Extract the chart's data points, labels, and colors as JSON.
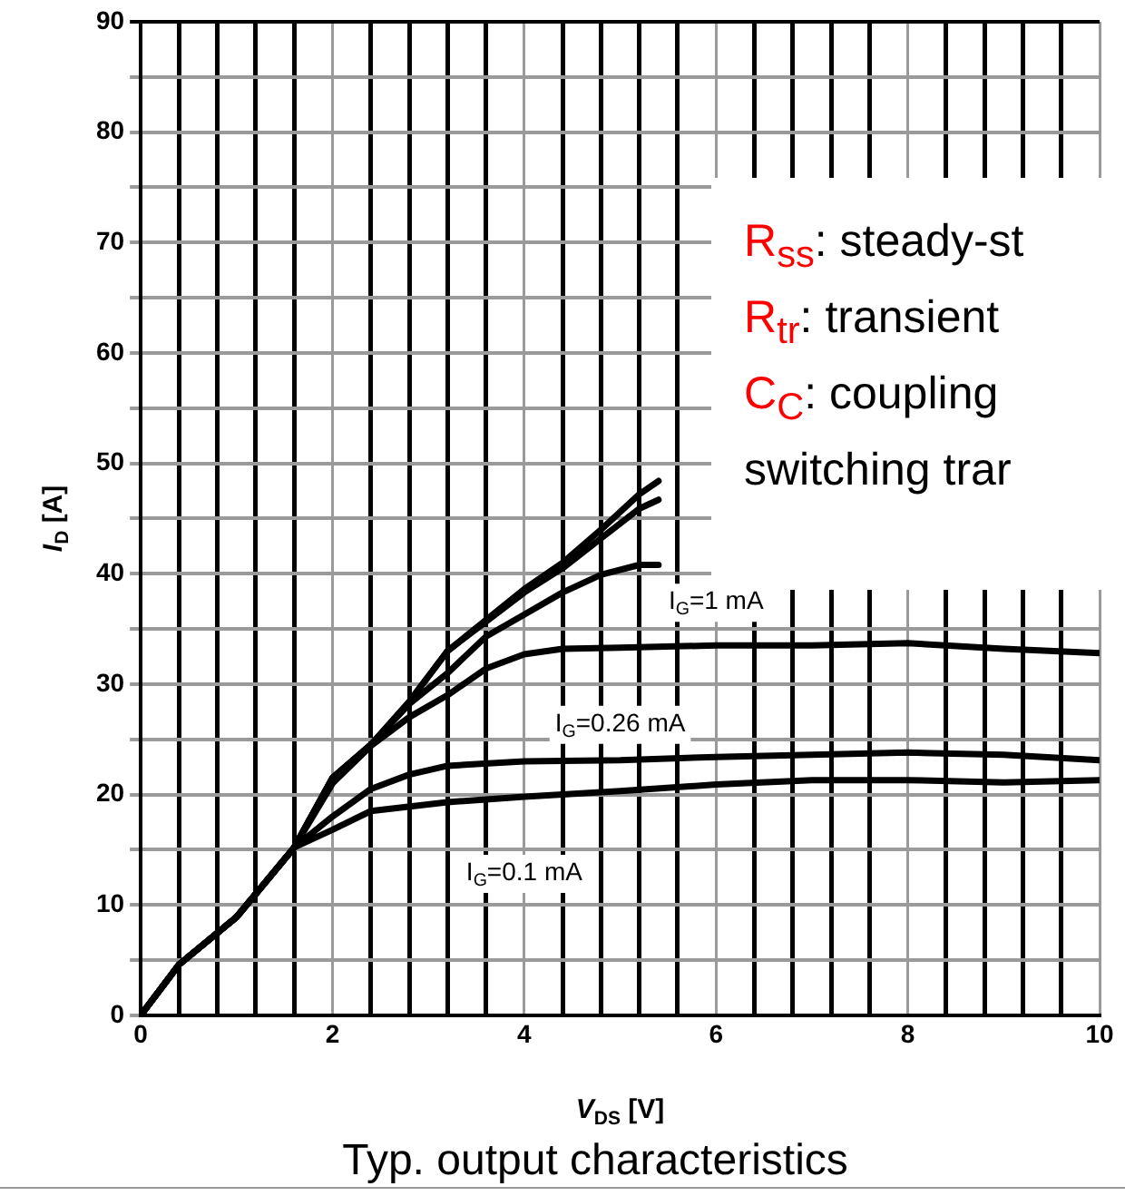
{
  "chart_data": {
    "type": "line",
    "title": "Typ. output characteristics",
    "xlabel": "V$_{DS}$ [V]",
    "ylabel": "I$_{D}$ [A]",
    "xlim": [
      0,
      10
    ],
    "ylim": [
      0,
      90
    ],
    "xticks": [
      0,
      {
        "value": 0.4,
        "label": null
      },
      {
        "value": 0.8,
        "label": null
      },
      {
        "value": 1.2,
        "label": null
      },
      {
        "value": 1.6,
        "label": null
      },
      2,
      {
        "value": 2.4,
        "label": null
      },
      {
        "value": 2.8,
        "label": null
      },
      {
        "value": 3.2,
        "label": null
      },
      {
        "value": 3.6,
        "label": null
      },
      4,
      {
        "value": 4.4,
        "label": null
      },
      {
        "value": 4.8,
        "label": null
      },
      {
        "value": 5.2,
        "label": null
      },
      {
        "value": 5.6,
        "label": null
      },
      6,
      {
        "value": 6.4,
        "label": null
      },
      {
        "value": 6.8,
        "label": null
      },
      {
        "value": 7.2,
        "label": null
      },
      {
        "value": 7.6,
        "label": null
      },
      8,
      {
        "value": 8.4,
        "label": null
      },
      {
        "value": 8.8,
        "label": null
      },
      {
        "value": 9.2,
        "label": null
      },
      {
        "value": 9.6,
        "label": null
      },
      10
    ],
    "yticks": [
      0,
      {
        "value": 5,
        "label": null
      },
      10,
      {
        "value": 15,
        "label": null
      },
      20,
      {
        "value": 25,
        "label": null
      },
      30,
      {
        "value": 35,
        "label": null
      },
      40,
      {
        "value": 45,
        "label": null
      },
      50,
      {
        "value": 55,
        "label": null
      },
      60,
      {
        "value": 65,
        "label": null
      },
      70,
      {
        "value": 75,
        "label": null
      },
      80,
      {
        "value": 85,
        "label": null
      },
      90
    ],
    "grid": true,
    "legend": false,
    "marker": "none",
    "line_style": "solid",
    "series": [
      {
        "name": "I$_{G}$=0.1 mA",
        "color": "#000000",
        "x": [
          0,
          0.4,
          1,
          1.6,
          2,
          2.4,
          3.2,
          4,
          5,
          6,
          7,
          8,
          9,
          10
        ],
        "values": [
          0,
          4.6,
          8.9,
          15.2,
          16.8,
          18.5,
          19.3,
          19.8,
          20.3,
          20.9,
          21.3,
          21.3,
          21.1,
          21.3
        ]
      },
      {
        "name": "I$_{G}$=0.26 mA",
        "color": "#000000",
        "x": [
          0,
          0.4,
          1,
          1.6,
          2,
          2.4,
          2.8,
          3.2,
          4,
          5,
          6,
          8,
          9,
          10
        ],
        "values": [
          0,
          4.6,
          8.9,
          15.2,
          18,
          20.5,
          21.8,
          22.6,
          23,
          23.1,
          23.4,
          23.8,
          23.6,
          23.1
        ]
      },
      {
        "name": "I$_{G}$=1 mA",
        "color": "#000000",
        "x": [
          0,
          0.4,
          1,
          1.6,
          2,
          2.4,
          2.8,
          3.2,
          3.6,
          4,
          4.4,
          5,
          6,
          7,
          8,
          9,
          10
        ],
        "values": [
          0,
          4.6,
          8.9,
          15.2,
          21,
          24.4,
          27,
          29,
          31.4,
          32.7,
          33.2,
          33.3,
          33.5,
          33.5,
          33.7,
          33.2,
          32.8
        ]
      },
      {
        "color": "#000000",
        "x": [
          0,
          0.4,
          1,
          1.6,
          2,
          2.4,
          2.8,
          3.2,
          3.6,
          4,
          4.4,
          4.8,
          5.2,
          5.4
        ],
        "values": [
          0,
          4.6,
          8.9,
          15.2,
          21.5,
          24.5,
          28.2,
          31,
          34.3,
          36.3,
          38.3,
          39.9,
          40.8,
          40.8
        ]
      },
      {
        "color": "#000000",
        "x": [
          0,
          0.4,
          1,
          1.6,
          2,
          2.4,
          2.8,
          3.2,
          4,
          4.4,
          4.8,
          5.2,
          5.4
        ],
        "values": [
          0,
          4.6,
          8.9,
          15.2,
          21.5,
          24.5,
          28.4,
          33,
          38.3,
          40.5,
          43.2,
          45.9,
          46.7
        ]
      },
      {
        "color": "#000000",
        "x": [
          0,
          0.4,
          1,
          1.6,
          2,
          2.4,
          2.8,
          3.2,
          4,
          4.4,
          4.8,
          5.2,
          5.4
        ],
        "values": [
          0,
          4.6,
          8.9,
          15.2,
          21.5,
          24.5,
          28.4,
          33,
          38.6,
          41,
          44,
          47.2,
          48.4
        ]
      }
    ],
    "annotations": [
      "R$_{ss}$: steady-st",
      "R$_{tr}$: transient",
      "C$_{C}$: coupling",
      "switching trar"
    ]
  }
}
